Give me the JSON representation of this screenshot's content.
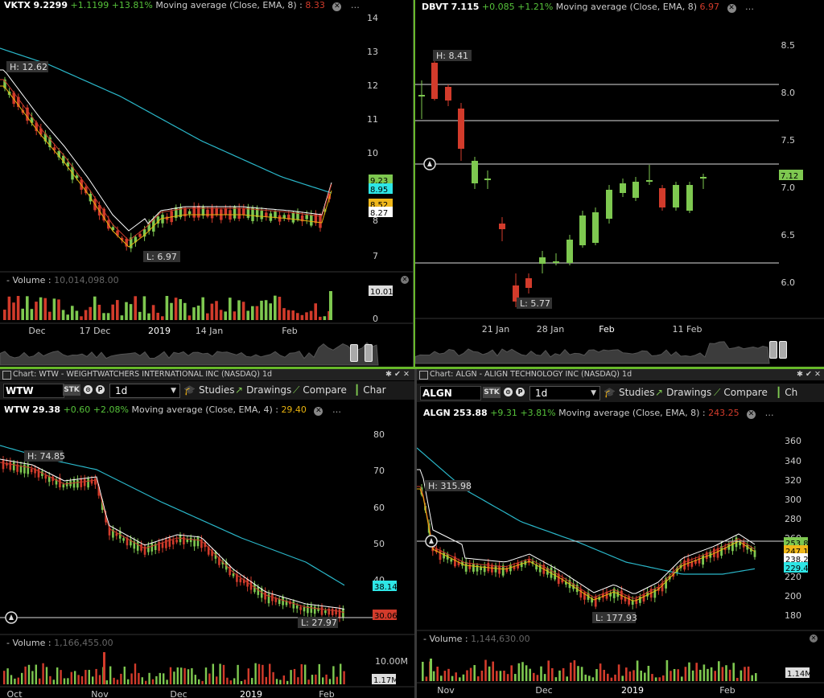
{
  "panels": [
    {
      "id": "vktx",
      "quote": {
        "symbol": "VKTX",
        "last": "9.2299",
        "change": "+1.1199",
        "pct": "+13.81%",
        "ma_label": "Moving average (Close, EMA, 8) :",
        "ma_value": "8.33"
      },
      "hi_label": "H: 12.62",
      "lo_label": "L: 6.97",
      "price_labels": [
        {
          "text": "9.23",
          "bg": "#7ec850"
        },
        {
          "text": "8.95",
          "bg": "#2ee6e6"
        },
        {
          "text": "8.52",
          "bg": "#f0b81a"
        },
        {
          "text": "8.27",
          "bg": "#ffffff"
        }
      ],
      "y_ticks": [
        "14",
        "13",
        "12",
        "11",
        "10",
        "9",
        "8",
        "7"
      ],
      "volume": {
        "label": "Volume",
        "value": "10,014,098.00",
        "last_label": "10.01M",
        "zero": "0"
      },
      "x_ticks": [
        "Dec",
        "17 Dec",
        "2019",
        "14 Jan",
        "Feb"
      ]
    },
    {
      "id": "dbvt",
      "quote": {
        "symbol": "DBVT",
        "last": "7.115",
        "change": "+0.085",
        "pct": "+1.21%",
        "ma_label": "Moving average (Close, EMA, 8)",
        "ma_value": "6.97"
      },
      "hi_label": "H: 8.41",
      "lo_label": "L: 5.77",
      "price_labels": [
        {
          "text": "7.12",
          "bg": "#7ec850"
        }
      ],
      "y_ticks": [
        "8.5",
        "8.0",
        "7.5",
        "7.0",
        "6.5",
        "6.0"
      ],
      "x_ticks": [
        "21 Jan",
        "28 Jan",
        "Feb",
        "11 Feb"
      ]
    },
    {
      "id": "wtw",
      "title": "Chart: WTW - WEIGHTWATCHERS INTERNATIONAL INC (NASDAQ) 1d",
      "toolbar": {
        "symbol": "WTW",
        "stk": "STK",
        "timeframe": "1d",
        "studies": "Studies",
        "drawings": "Drawings",
        "compare": "Compare",
        "chart": "Char"
      },
      "quote": {
        "symbol": "WTW",
        "last": "29.38",
        "change": "+0.60",
        "pct": "+2.08%",
        "ma_label": "Moving average (Close, EMA, 4) :",
        "ma_value": "29.40"
      },
      "hi_label": "H: 74.85",
      "lo_label": "L: 27.97",
      "price_labels": [
        {
          "text": "38.14",
          "bg": "#2ee6e6"
        },
        {
          "text": "30.06",
          "bg": "#d23b2b"
        }
      ],
      "y_ticks": [
        "80",
        "70",
        "60",
        "50",
        "40"
      ],
      "volume": {
        "label": "Volume",
        "value": "1,166,455.00",
        "top_label": "10.00M",
        "last_label": "1.17M"
      },
      "x_ticks": [
        "Oct",
        "Nov",
        "Dec",
        "2019",
        "Feb"
      ]
    },
    {
      "id": "algn",
      "title": "Chart: ALGN - ALIGN TECHNOLOGY INC (NASDAQ) 1d",
      "toolbar": {
        "symbol": "ALGN",
        "stk": "STK",
        "timeframe": "1d",
        "studies": "Studies",
        "drawings": "Drawings",
        "compare": "Compare",
        "chart": "Ch"
      },
      "quote": {
        "symbol": "ALGN",
        "last": "253.88",
        "change": "+9.31",
        "pct": "+3.81%",
        "ma_label": "Moving average (Close, EMA, 8) :",
        "ma_value": "243.25"
      },
      "hi_label": "H: 315.98",
      "lo_label": "L: 177.93",
      "price_labels": [
        {
          "text": "253.88",
          "bg": "#7ec850"
        },
        {
          "text": "247.15",
          "bg": "#f0b81a"
        },
        {
          "text": "238.28",
          "bg": "#ffffff"
        },
        {
          "text": "229.4",
          "bg": "#2ee6e6"
        }
      ],
      "y_ticks": [
        "360",
        "340",
        "320",
        "300",
        "280",
        "260",
        "240",
        "220",
        "200",
        "180"
      ],
      "volume": {
        "label": "Volume",
        "value": "1,144,630.00",
        "last_label": "1.14M"
      },
      "x_ticks": [
        "Nov",
        "Dec",
        "2019",
        "Feb"
      ]
    }
  ],
  "colors": {
    "up": "#7ec850",
    "down": "#d23b2b",
    "ema_slow": "#2ab7c9",
    "ema_white": "#ffffff",
    "ema_red": "#c83a2a",
    "ema_yellow": "#e8b20e",
    "accent": "#67b82a"
  }
}
